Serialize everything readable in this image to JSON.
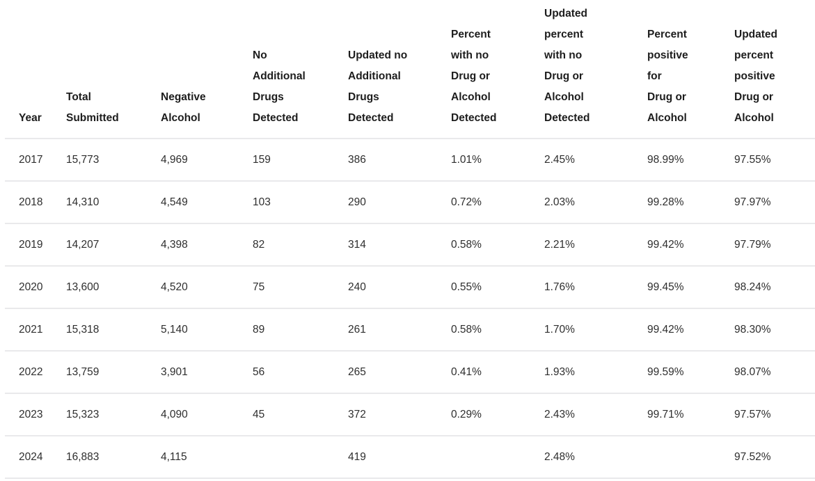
{
  "chart_data": {
    "type": "table",
    "columns": [
      "Year",
      "Total\nSubmitted",
      "Negative\nAlcohol",
      "No\nAdditional\nDrugs\nDetected",
      "Updated no\nAdditional\nDrugs\nDetected",
      "Percent\nwith no\nDrug or\nAlcohol\nDetected",
      "Updated\npercent\nwith no\nDrug or\nAlcohol\nDetected",
      "Percent\npositive\nfor\nDrug or\nAlcohol",
      "Updated\npercent\npositive\nDrug or\nAlcohol"
    ],
    "rows": [
      [
        "2017",
        "15,773",
        "4,969",
        "159",
        "386",
        "1.01%",
        "2.45%",
        "98.99%",
        "97.55%"
      ],
      [
        "2018",
        "14,310",
        "4,549",
        "103",
        "290",
        "0.72%",
        "2.03%",
        "99.28%",
        "97.97%"
      ],
      [
        "2019",
        "14,207",
        "4,398",
        "82",
        "314",
        "0.58%",
        "2.21%",
        "99.42%",
        "97.79%"
      ],
      [
        "2020",
        "13,600",
        "4,520",
        "75",
        "240",
        "0.55%",
        "1.76%",
        "99.45%",
        "98.24%"
      ],
      [
        "2021",
        "15,318",
        "5,140",
        "89",
        "261",
        "0.58%",
        "1.70%",
        "99.42%",
        "98.30%"
      ],
      [
        "2022",
        "13,759",
        "3,901",
        "56",
        "265",
        "0.41%",
        "1.93%",
        "99.59%",
        "98.07%"
      ],
      [
        "2023",
        "15,323",
        "4,090",
        "45",
        "372",
        "0.29%",
        "2.43%",
        "99.71%",
        "97.57%"
      ],
      [
        "2024",
        "16,883",
        "4,115",
        "",
        "419",
        "",
        "2.48%",
        "",
        "97.52%"
      ]
    ],
    "title": "",
    "grid": "horizontal-dividers-only",
    "legend": "none"
  },
  "colors": {
    "background": "#ffffff",
    "header_text": "#1d1d1d",
    "body_text": "#2e2e2e",
    "divider": "#e9e9eb"
  }
}
